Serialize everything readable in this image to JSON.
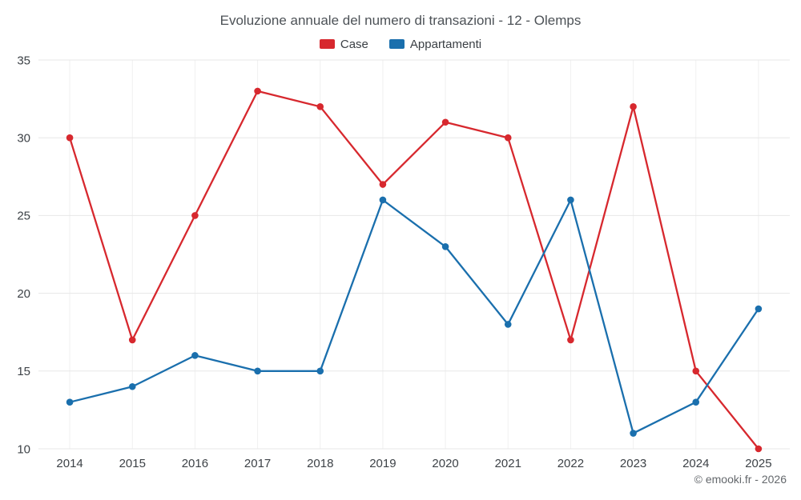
{
  "chart_data": {
    "type": "line",
    "title": "Evoluzione annuale del numero di transazioni - 12 - Olemps",
    "categories": [
      "2014",
      "2015",
      "2016",
      "2017",
      "2018",
      "2019",
      "2020",
      "2021",
      "2022",
      "2023",
      "2024",
      "2025"
    ],
    "series": [
      {
        "name": "Case",
        "color": "#d7282e",
        "values": [
          30,
          17,
          25,
          33,
          32,
          27,
          31,
          30,
          17,
          32,
          15,
          10
        ]
      },
      {
        "name": "Appartamenti",
        "color": "#1a6fad",
        "values": [
          13,
          14,
          16,
          15,
          15,
          26,
          23,
          18,
          26,
          11,
          13,
          19
        ]
      }
    ],
    "xlabel": "",
    "ylabel": "",
    "ylim": [
      10,
      35
    ],
    "yticks": [
      10,
      15,
      20,
      25,
      30,
      35
    ],
    "grid": true,
    "legend_position": "top"
  },
  "footer": {
    "credit": "© emooki.fr - 2026"
  }
}
